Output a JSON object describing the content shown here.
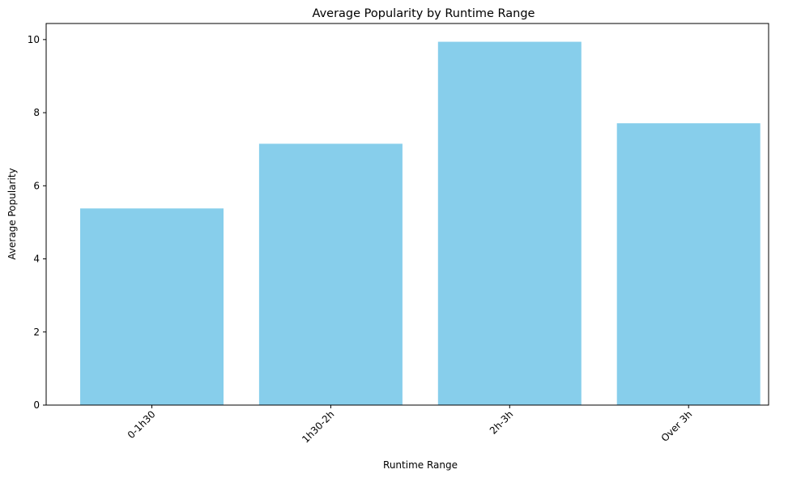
{
  "chart_data": {
    "type": "bar",
    "title": "Average Popularity by Runtime Range",
    "xlabel": "Runtime Range",
    "ylabel": "Average Popularity",
    "categories": [
      "0-1h30",
      "1h30-2h",
      "2h-3h",
      "Over 3h"
    ],
    "values": [
      5.38,
      7.15,
      9.94,
      7.71
    ],
    "ylim": [
      0,
      10.44
    ],
    "yticks": [
      "0",
      "2",
      "4",
      "6",
      "8",
      "10"
    ],
    "bar_color": "#87CEEB",
    "grid": false,
    "xtick_rotation": 45
  }
}
